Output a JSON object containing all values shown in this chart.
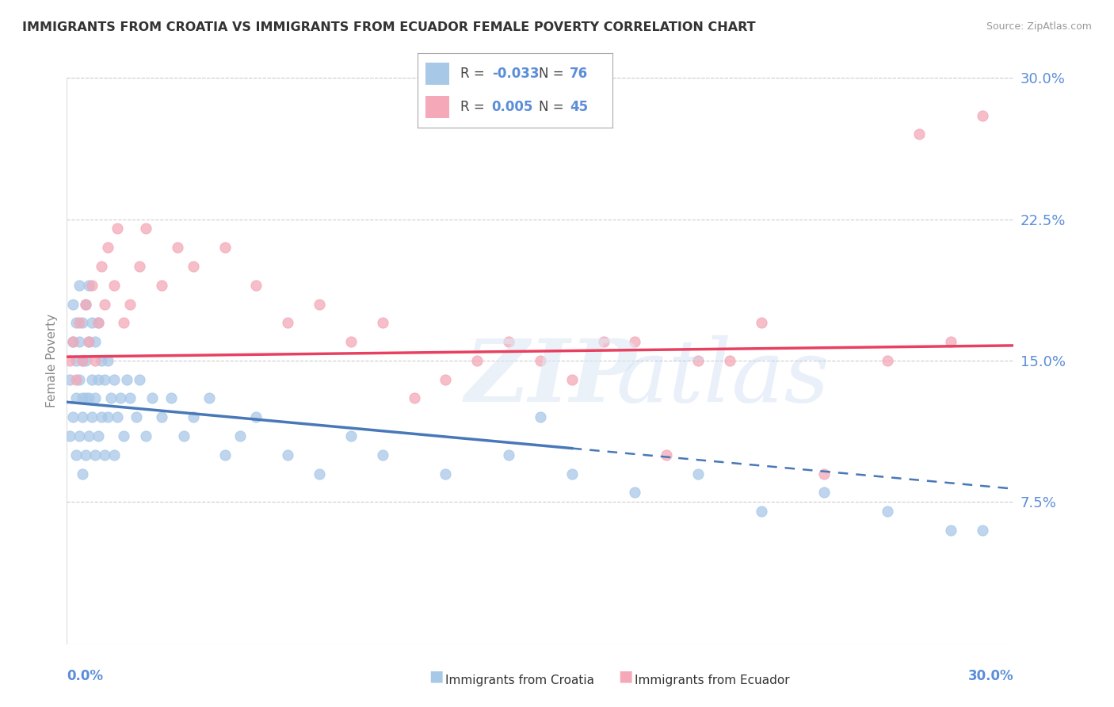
{
  "title": "IMMIGRANTS FROM CROATIA VS IMMIGRANTS FROM ECUADOR FEMALE POVERTY CORRELATION CHART",
  "source": "Source: ZipAtlas.com",
  "ylabel": "Female Poverty",
  "ylim": [
    0,
    0.3
  ],
  "xlim": [
    0,
    0.3
  ],
  "yticks": [
    0.075,
    0.15,
    0.225,
    0.3
  ],
  "ytick_labels": [
    "7.5%",
    "15.0%",
    "22.5%",
    "30.0%"
  ],
  "legend_r_croatia": "-0.033",
  "legend_n_croatia": "76",
  "legend_r_ecuador": "0.005",
  "legend_n_ecuador": "45",
  "color_croatia": "#a8c8e8",
  "color_ecuador": "#f4a8b8",
  "color_trend_croatia": "#4878b8",
  "color_trend_ecuador": "#e84060",
  "color_axis_labels": "#5b8dd9",
  "trend_solid_cutoff": 0.16,
  "croatia_x": [
    0.001,
    0.001,
    0.002,
    0.002,
    0.002,
    0.003,
    0.003,
    0.003,
    0.003,
    0.004,
    0.004,
    0.004,
    0.004,
    0.005,
    0.005,
    0.005,
    0.005,
    0.005,
    0.006,
    0.006,
    0.006,
    0.006,
    0.007,
    0.007,
    0.007,
    0.007,
    0.008,
    0.008,
    0.008,
    0.009,
    0.009,
    0.009,
    0.01,
    0.01,
    0.01,
    0.011,
    0.011,
    0.012,
    0.012,
    0.013,
    0.013,
    0.014,
    0.015,
    0.015,
    0.016,
    0.017,
    0.018,
    0.019,
    0.02,
    0.022,
    0.023,
    0.025,
    0.027,
    0.03,
    0.033,
    0.037,
    0.04,
    0.045,
    0.05,
    0.055,
    0.06,
    0.07,
    0.08,
    0.09,
    0.1,
    0.12,
    0.14,
    0.15,
    0.16,
    0.18,
    0.2,
    0.22,
    0.24,
    0.26,
    0.28,
    0.29
  ],
  "croatia_y": [
    0.14,
    0.11,
    0.12,
    0.16,
    0.18,
    0.1,
    0.13,
    0.15,
    0.17,
    0.11,
    0.14,
    0.16,
    0.19,
    0.09,
    0.12,
    0.13,
    0.15,
    0.17,
    0.1,
    0.13,
    0.15,
    0.18,
    0.11,
    0.13,
    0.16,
    0.19,
    0.12,
    0.14,
    0.17,
    0.1,
    0.13,
    0.16,
    0.11,
    0.14,
    0.17,
    0.12,
    0.15,
    0.1,
    0.14,
    0.12,
    0.15,
    0.13,
    0.1,
    0.14,
    0.12,
    0.13,
    0.11,
    0.14,
    0.13,
    0.12,
    0.14,
    0.11,
    0.13,
    0.12,
    0.13,
    0.11,
    0.12,
    0.13,
    0.1,
    0.11,
    0.12,
    0.1,
    0.09,
    0.11,
    0.1,
    0.09,
    0.1,
    0.12,
    0.09,
    0.08,
    0.09,
    0.07,
    0.08,
    0.07,
    0.06,
    0.06
  ],
  "ecuador_x": [
    0.001,
    0.002,
    0.003,
    0.004,
    0.005,
    0.006,
    0.007,
    0.008,
    0.009,
    0.01,
    0.011,
    0.012,
    0.013,
    0.015,
    0.016,
    0.018,
    0.02,
    0.023,
    0.025,
    0.03,
    0.035,
    0.04,
    0.05,
    0.06,
    0.07,
    0.08,
    0.09,
    0.1,
    0.12,
    0.14,
    0.15,
    0.16,
    0.18,
    0.2,
    0.21,
    0.22,
    0.24,
    0.26,
    0.27,
    0.28,
    0.29,
    0.13,
    0.11,
    0.17,
    0.19
  ],
  "ecuador_y": [
    0.15,
    0.16,
    0.14,
    0.17,
    0.15,
    0.18,
    0.16,
    0.19,
    0.15,
    0.17,
    0.2,
    0.18,
    0.21,
    0.19,
    0.22,
    0.17,
    0.18,
    0.2,
    0.22,
    0.19,
    0.21,
    0.2,
    0.21,
    0.19,
    0.17,
    0.18,
    0.16,
    0.17,
    0.14,
    0.16,
    0.15,
    0.14,
    0.16,
    0.15,
    0.15,
    0.17,
    0.09,
    0.15,
    0.27,
    0.16,
    0.28,
    0.15,
    0.13,
    0.16,
    0.1
  ],
  "croatia_trend_start_y": 0.128,
  "croatia_trend_end_y": 0.082,
  "ecuador_trend_start_y": 0.152,
  "ecuador_trend_end_y": 0.158
}
